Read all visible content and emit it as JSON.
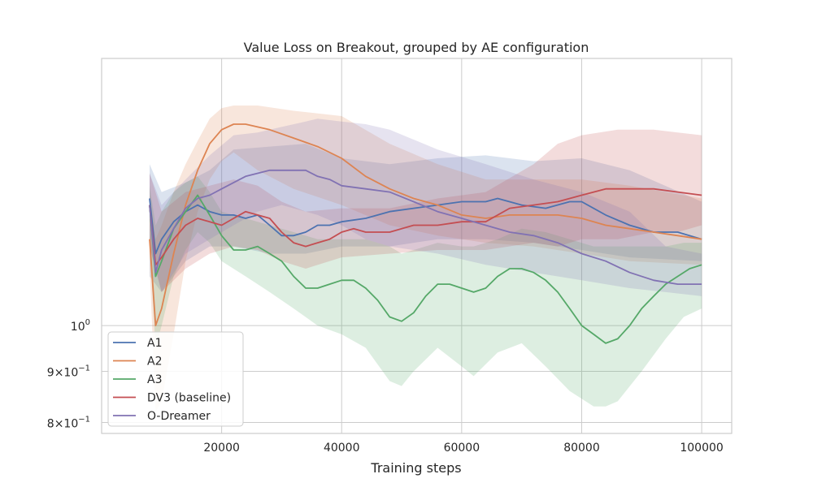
{
  "chart_data": {
    "type": "line",
    "title": "Value Loss on Breakout, grouped by AE configuration",
    "xlabel": "Training steps",
    "ylabel": "",
    "y_scale": "log",
    "xlim": [
      0,
      105000
    ],
    "ylim": [
      0.78,
      1.85
    ],
    "x_ticks": [
      20000,
      40000,
      60000,
      80000,
      100000
    ],
    "x_tick_labels": [
      "20000",
      "40000",
      "60000",
      "80000",
      "100000"
    ],
    "y_ticks": [
      0.8,
      0.9,
      1.0
    ],
    "y_tick_labels": [
      {
        "base": "8",
        "mult": "×",
        "exp_base": "10",
        "exp": "−1"
      },
      {
        "base": "9",
        "mult": "×",
        "exp_base": "10",
        "exp": "−1"
      },
      {
        "base": "",
        "mult": "",
        "exp_base": "10",
        "exp": "0"
      }
    ],
    "grid": true,
    "legend_position": "lower-left",
    "series": [
      {
        "name": "A1",
        "color": "#4c72b0",
        "x": [
          8000,
          9000,
          10000,
          12000,
          14000,
          16000,
          18000,
          20000,
          22000,
          24000,
          26000,
          28000,
          30000,
          32000,
          34000,
          36000,
          38000,
          40000,
          44000,
          48000,
          52000,
          56000,
          60000,
          64000,
          66000,
          70000,
          74000,
          78000,
          80000,
          84000,
          88000,
          92000,
          96000,
          100000
        ],
        "y": [
          1.34,
          1.18,
          1.22,
          1.27,
          1.3,
          1.32,
          1.3,
          1.29,
          1.29,
          1.28,
          1.29,
          1.26,
          1.23,
          1.23,
          1.24,
          1.26,
          1.26,
          1.27,
          1.28,
          1.3,
          1.31,
          1.32,
          1.33,
          1.33,
          1.34,
          1.32,
          1.31,
          1.33,
          1.33,
          1.29,
          1.26,
          1.24,
          1.24,
          1.22
        ]
      },
      {
        "name": "A2",
        "color": "#dd8452",
        "x": [
          8000,
          9000,
          10000,
          12000,
          14000,
          16000,
          18000,
          20000,
          22000,
          24000,
          28000,
          32000,
          36000,
          40000,
          44000,
          48000,
          52000,
          56000,
          60000,
          64000,
          68000,
          72000,
          76000,
          80000,
          84000,
          88000,
          92000,
          96000,
          100000
        ],
        "y": [
          1.22,
          1.0,
          1.04,
          1.18,
          1.32,
          1.43,
          1.52,
          1.57,
          1.59,
          1.59,
          1.57,
          1.54,
          1.51,
          1.47,
          1.41,
          1.37,
          1.34,
          1.32,
          1.29,
          1.28,
          1.29,
          1.29,
          1.29,
          1.28,
          1.26,
          1.25,
          1.24,
          1.23,
          1.22
        ]
      },
      {
        "name": "A3",
        "color": "#55a868",
        "x": [
          8000,
          9000,
          10000,
          12000,
          14000,
          16000,
          18000,
          20000,
          22000,
          24000,
          26000,
          28000,
          30000,
          32000,
          34000,
          36000,
          38000,
          40000,
          42000,
          44000,
          46000,
          48000,
          50000,
          52000,
          54000,
          56000,
          58000,
          60000,
          62000,
          64000,
          66000,
          68000,
          70000,
          72000,
          74000,
          76000,
          78000,
          80000,
          82000,
          84000,
          86000,
          88000,
          90000,
          92000,
          94000,
          96000,
          98000,
          100000
        ],
        "y": [
          1.32,
          1.12,
          1.16,
          1.25,
          1.3,
          1.35,
          1.29,
          1.23,
          1.19,
          1.19,
          1.2,
          1.18,
          1.16,
          1.12,
          1.09,
          1.09,
          1.1,
          1.11,
          1.11,
          1.09,
          1.06,
          1.02,
          1.01,
          1.03,
          1.07,
          1.1,
          1.1,
          1.09,
          1.08,
          1.09,
          1.12,
          1.14,
          1.14,
          1.13,
          1.11,
          1.08,
          1.04,
          1.0,
          0.98,
          0.96,
          0.97,
          1.0,
          1.04,
          1.07,
          1.1,
          1.12,
          1.14,
          1.15
        ]
      },
      {
        "name": "DV3 (baseline)",
        "color": "#c44e52",
        "x": [
          8000,
          9000,
          10000,
          12000,
          14000,
          16000,
          18000,
          20000,
          22000,
          24000,
          26000,
          28000,
          30000,
          32000,
          34000,
          36000,
          38000,
          40000,
          42000,
          44000,
          48000,
          52000,
          56000,
          60000,
          64000,
          68000,
          72000,
          76000,
          80000,
          84000,
          88000,
          92000,
          96000,
          100000
        ],
        "y": [
          1.32,
          1.15,
          1.17,
          1.22,
          1.26,
          1.28,
          1.27,
          1.26,
          1.28,
          1.3,
          1.29,
          1.28,
          1.24,
          1.21,
          1.2,
          1.21,
          1.22,
          1.24,
          1.25,
          1.24,
          1.24,
          1.26,
          1.26,
          1.27,
          1.27,
          1.31,
          1.32,
          1.33,
          1.35,
          1.37,
          1.37,
          1.37,
          1.36,
          1.35
        ]
      },
      {
        "name": "O-Dreamer",
        "color": "#8172b3",
        "x": [
          8000,
          9000,
          10000,
          12000,
          14000,
          16000,
          18000,
          20000,
          22000,
          24000,
          26000,
          28000,
          30000,
          32000,
          34000,
          36000,
          38000,
          40000,
          44000,
          48000,
          52000,
          56000,
          60000,
          64000,
          68000,
          72000,
          76000,
          80000,
          84000,
          88000,
          92000,
          96000,
          100000
        ],
        "y": [
          1.32,
          1.13,
          1.19,
          1.25,
          1.31,
          1.34,
          1.35,
          1.37,
          1.39,
          1.41,
          1.42,
          1.43,
          1.43,
          1.43,
          1.43,
          1.41,
          1.4,
          1.38,
          1.37,
          1.36,
          1.33,
          1.3,
          1.28,
          1.26,
          1.24,
          1.23,
          1.21,
          1.18,
          1.16,
          1.13,
          1.11,
          1.1,
          1.1
        ]
      }
    ],
    "bands": [
      {
        "series": "A1",
        "x": [
          8000,
          10000,
          14000,
          18000,
          22000,
          28000,
          34000,
          40000,
          48000,
          56000,
          64000,
          72000,
          80000,
          88000,
          100000
        ],
        "lower": [
          1.12,
          1.08,
          1.16,
          1.2,
          1.2,
          1.18,
          1.18,
          1.2,
          1.2,
          1.22,
          1.22,
          1.21,
          1.19,
          1.17,
          1.16
        ],
        "upper": [
          1.45,
          1.36,
          1.39,
          1.43,
          1.5,
          1.51,
          1.52,
          1.47,
          1.45,
          1.47,
          1.48,
          1.46,
          1.47,
          1.43,
          1.33
        ]
      },
      {
        "series": "A2",
        "x": [
          8000,
          9000,
          10000,
          12000,
          14000,
          16000,
          18000,
          20000,
          22000,
          26000,
          32000,
          40000,
          48000,
          56000,
          64000,
          72000,
          80000,
          88000,
          100000
        ],
        "lower": [
          1.15,
          0.82,
          0.84,
          0.98,
          1.16,
          1.3,
          1.4,
          1.46,
          1.49,
          1.43,
          1.37,
          1.32,
          1.26,
          1.23,
          1.21,
          1.2,
          1.18,
          1.16,
          1.15
        ],
        "upper": [
          1.35,
          1.22,
          1.26,
          1.36,
          1.45,
          1.53,
          1.61,
          1.65,
          1.66,
          1.66,
          1.64,
          1.62,
          1.52,
          1.45,
          1.4,
          1.4,
          1.4,
          1.38,
          1.34
        ]
      },
      {
        "series": "A3",
        "x": [
          8000,
          9000,
          10000,
          12000,
          14000,
          16000,
          18000,
          20000,
          24000,
          28000,
          32000,
          36000,
          40000,
          44000,
          48000,
          50000,
          52000,
          56000,
          60000,
          62000,
          66000,
          70000,
          74000,
          78000,
          82000,
          84000,
          86000,
          90000,
          94000,
          97000,
          100000
        ],
        "lower": [
          1.2,
          0.95,
          1.0,
          1.12,
          1.19,
          1.24,
          1.21,
          1.16,
          1.12,
          1.08,
          1.04,
          1.0,
          0.98,
          0.95,
          0.88,
          0.87,
          0.9,
          0.95,
          0.91,
          0.89,
          0.94,
          0.96,
          0.91,
          0.86,
          0.83,
          0.83,
          0.84,
          0.9,
          0.97,
          1.02,
          1.04
        ],
        "upper": [
          1.38,
          1.26,
          1.3,
          1.36,
          1.39,
          1.41,
          1.36,
          1.3,
          1.28,
          1.26,
          1.24,
          1.22,
          1.22,
          1.22,
          1.2,
          1.18,
          1.19,
          1.21,
          1.2,
          1.2,
          1.22,
          1.25,
          1.24,
          1.22,
          1.2,
          1.2,
          1.2,
          1.2,
          1.2,
          1.21,
          1.21
        ]
      },
      {
        "series": "DV3 (baseline)",
        "x": [
          8000,
          10000,
          14000,
          18000,
          22000,
          26000,
          30000,
          34000,
          40000,
          48000,
          56000,
          64000,
          72000,
          76000,
          80000,
          86000,
          92000,
          96000,
          100000
        ],
        "lower": [
          1.2,
          1.08,
          1.14,
          1.18,
          1.2,
          1.19,
          1.16,
          1.14,
          1.17,
          1.18,
          1.19,
          1.19,
          1.21,
          1.2,
          1.22,
          1.22,
          1.24,
          1.24,
          1.26
        ],
        "upper": [
          1.42,
          1.3,
          1.36,
          1.38,
          1.4,
          1.38,
          1.33,
          1.3,
          1.31,
          1.31,
          1.34,
          1.36,
          1.45,
          1.52,
          1.55,
          1.57,
          1.57,
          1.56,
          1.55
        ]
      },
      {
        "series": "O-Dreamer",
        "x": [
          8000,
          10000,
          14000,
          18000,
          22000,
          26000,
          30000,
          34000,
          36000,
          40000,
          44000,
          48000,
          56000,
          64000,
          72000,
          80000,
          88000,
          94000,
          100000
        ],
        "lower": [
          1.2,
          1.08,
          1.18,
          1.22,
          1.26,
          1.3,
          1.32,
          1.3,
          1.29,
          1.26,
          1.22,
          1.2,
          1.18,
          1.15,
          1.13,
          1.11,
          1.09,
          1.08,
          1.07
        ],
        "upper": [
          1.42,
          1.32,
          1.4,
          1.48,
          1.55,
          1.56,
          1.58,
          1.6,
          1.61,
          1.6,
          1.59,
          1.57,
          1.5,
          1.45,
          1.4,
          1.36,
          1.3,
          1.2,
          1.18
        ]
      }
    ]
  }
}
